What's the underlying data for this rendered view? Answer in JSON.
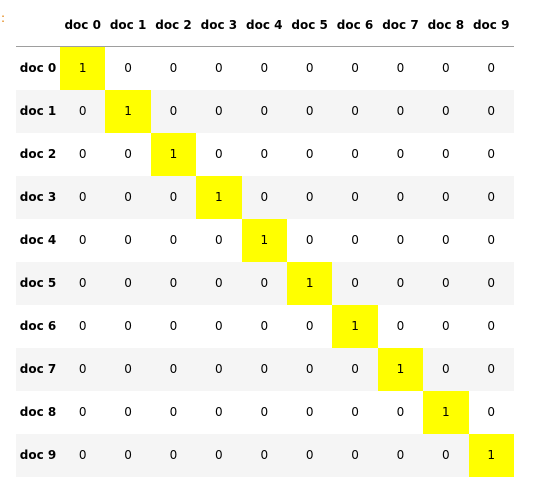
{
  "prompt_marker": ":",
  "table": {
    "columns": [
      "doc 0",
      "doc 1",
      "doc 2",
      "doc 3",
      "doc 4",
      "doc 5",
      "doc 6",
      "doc 7",
      "doc 8",
      "doc 9"
    ],
    "rows": [
      {
        "label": "doc 0",
        "values": [
          "1",
          "0",
          "0",
          "0",
          "0",
          "0",
          "0",
          "0",
          "0",
          "0"
        ]
      },
      {
        "label": "doc 1",
        "values": [
          "0",
          "1",
          "0",
          "0",
          "0",
          "0",
          "0",
          "0",
          "0",
          "0"
        ]
      },
      {
        "label": "doc 2",
        "values": [
          "0",
          "0",
          "1",
          "0",
          "0",
          "0",
          "0",
          "0",
          "0",
          "0"
        ]
      },
      {
        "label": "doc 3",
        "values": [
          "0",
          "0",
          "0",
          "1",
          "0",
          "0",
          "0",
          "0",
          "0",
          "0"
        ]
      },
      {
        "label": "doc 4",
        "values": [
          "0",
          "0",
          "0",
          "0",
          "1",
          "0",
          "0",
          "0",
          "0",
          "0"
        ]
      },
      {
        "label": "doc 5",
        "values": [
          "0",
          "0",
          "0",
          "0",
          "0",
          "1",
          "0",
          "0",
          "0",
          "0"
        ]
      },
      {
        "label": "doc 6",
        "values": [
          "0",
          "0",
          "0",
          "0",
          "0",
          "0",
          "1",
          "0",
          "0",
          "0"
        ]
      },
      {
        "label": "doc 7",
        "values": [
          "0",
          "0",
          "0",
          "0",
          "0",
          "0",
          "0",
          "1",
          "0",
          "0"
        ]
      },
      {
        "label": "doc 8",
        "values": [
          "0",
          "0",
          "0",
          "0",
          "0",
          "0",
          "0",
          "0",
          "1",
          "0"
        ]
      },
      {
        "label": "doc 9",
        "values": [
          "0",
          "0",
          "0",
          "0",
          "0",
          "0",
          "0",
          "0",
          "0",
          "1"
        ]
      }
    ],
    "highlight_color": "#ffff00",
    "stripe_color": "#f5f5f5"
  }
}
